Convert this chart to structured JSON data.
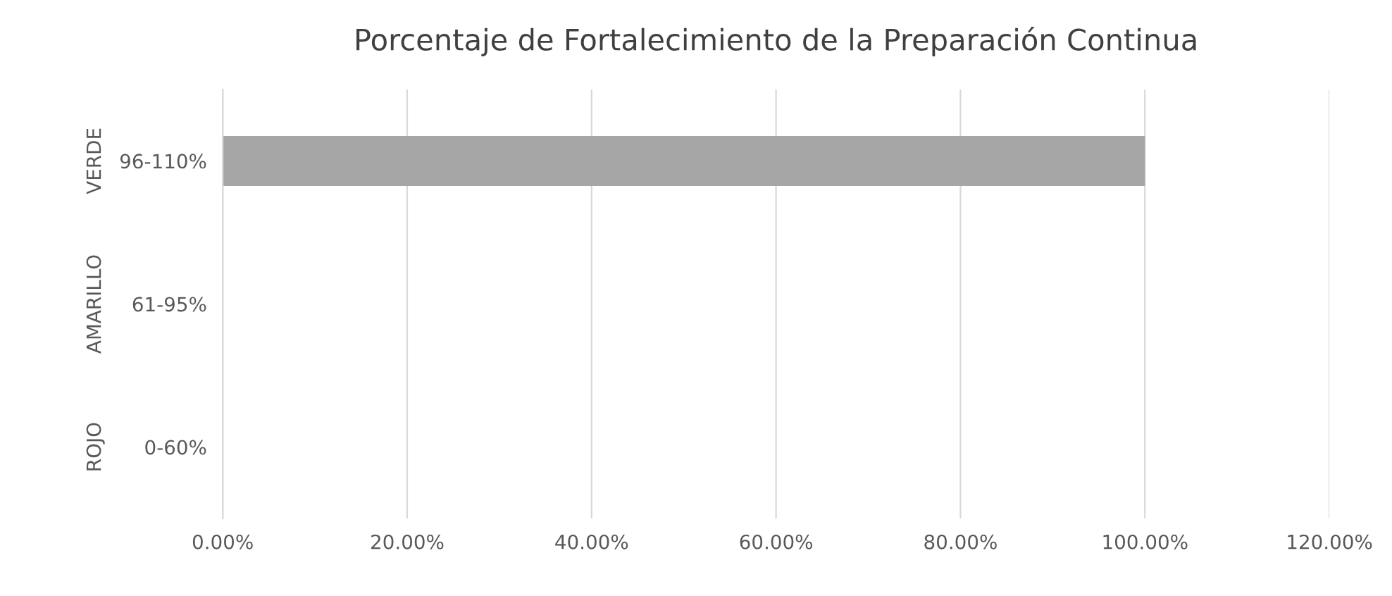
{
  "chart_data": {
    "type": "bar",
    "orientation": "horizontal",
    "title": "Porcentaje de Fortalecimiento de la Preparación Continua",
    "categories": [
      "96-110%",
      "61-95%",
      "0-60%"
    ],
    "values": [
      1.0,
      null,
      null
    ],
    "color": "#a6a6a6",
    "annotations": [
      "VERDE",
      "AMARILLO",
      "ROJO"
    ],
    "xlim": [
      0,
      1.2
    ],
    "xticks": [
      {
        "value": 0,
        "label": "0.00%"
      },
      {
        "value": 0.2,
        "label": "20.00%"
      },
      {
        "value": 0.4,
        "label": "40.00%"
      },
      {
        "value": 0.6,
        "label": "60.00%"
      },
      {
        "value": 0.8,
        "label": "80.00%"
      },
      {
        "value": 1.0,
        "label": "100.00%"
      },
      {
        "value": 1.2,
        "label": "120.00%"
      }
    ],
    "grid": "x"
  }
}
